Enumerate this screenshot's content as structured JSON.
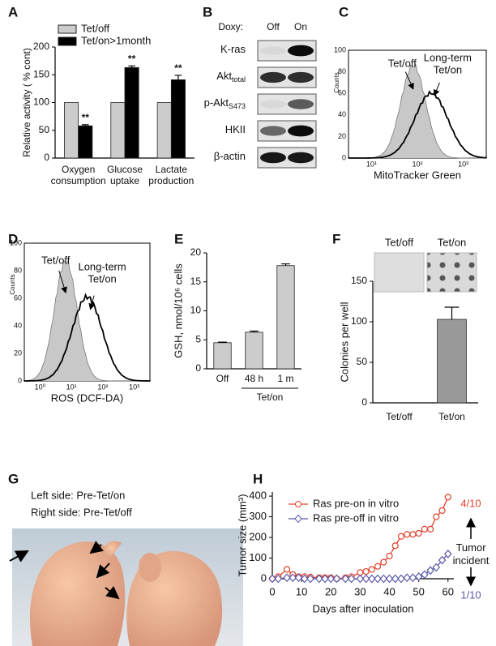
{
  "chart_data": [
    {
      "type": "bar",
      "panel": "A",
      "ylabel": "Relative activity ( % cont)",
      "categories": [
        "Oxygen consumption",
        "Glucose uptake",
        "Lactate production"
      ],
      "series": [
        {
          "name": "Tet/off",
          "color": "#cccccc",
          "values": [
            100,
            100,
            100
          ]
        },
        {
          "name": "Tet/on>1month",
          "color": "#000000",
          "values": [
            58,
            163,
            141
          ],
          "errors": [
            2,
            3,
            8
          ],
          "significance": [
            "**",
            "**",
            "**"
          ]
        }
      ],
      "ylim": [
        0,
        200
      ],
      "yticks": [
        0,
        50,
        100,
        150,
        200
      ]
    },
    {
      "type": "bar",
      "panel": "E",
      "ylabel": "GSH, nmol/10⁶ cells",
      "categories": [
        "Off",
        "48 h",
        "1 m"
      ],
      "values": [
        4.5,
        6.3,
        17.8
      ],
      "errors": [
        0.1,
        0.2,
        0.3
      ],
      "color": "#cccccc",
      "group_label": "Tet/on",
      "ylim": [
        0,
        20
      ],
      "yticks": [
        0,
        5,
        10,
        15,
        20
      ]
    },
    {
      "type": "bar",
      "panel": "F",
      "ylabel": "Colonies per well",
      "categories": [
        "Tet/off",
        "Tet/on"
      ],
      "values": [
        0,
        103
      ],
      "errors": [
        null,
        15
      ],
      "color": "#999999",
      "image_labels": [
        "Tet/off",
        "Tet/on"
      ],
      "ylim": [
        0,
        150
      ],
      "yticks": [
        0,
        50,
        100,
        150
      ]
    },
    {
      "type": "line",
      "panel": "H",
      "xlabel": "Days after inoculation",
      "ylabel": "Tumor size (mm³)",
      "x": [
        0,
        2,
        5,
        7,
        9,
        11,
        13,
        16,
        18,
        20,
        22,
        25,
        27,
        30,
        32,
        34,
        36,
        38,
        40,
        42,
        44,
        46,
        48,
        50,
        52,
        54,
        56,
        58,
        60
      ],
      "series": [
        {
          "name": "Ras pre-on in vitro",
          "color": "#e0402a",
          "marker": "circle",
          "values": [
            0,
            10,
            45,
            20,
            10,
            10,
            8,
            5,
            5,
            5,
            0,
            5,
            10,
            30,
            35,
            45,
            60,
            80,
            110,
            160,
            205,
            215,
            215,
            220,
            240,
            240,
            300,
            330,
            395
          ]
        },
        {
          "name": "Ras pre-off in vitro",
          "color": "#5a5aa8",
          "marker": "diamond",
          "values": [
            0,
            0,
            5,
            5,
            5,
            0,
            0,
            0,
            0,
            0,
            0,
            0,
            0,
            0,
            0,
            0,
            0,
            0,
            0,
            0,
            0,
            5,
            5,
            10,
            20,
            40,
            55,
            90,
            120
          ]
        }
      ],
      "annotations": {
        "top": "4/10",
        "middle": "Tumor incident",
        "bottom": "1/10"
      },
      "xlim": [
        0,
        62
      ],
      "xticks": [
        0,
        10,
        20,
        30,
        40,
        50,
        60
      ],
      "ylim": [
        0,
        420
      ],
      "yticks": [
        0,
        100,
        200,
        300,
        400
      ]
    }
  ],
  "blot": {
    "panel": "B",
    "header": "Doxy:",
    "lanes": [
      "Off",
      "On"
    ],
    "rows": [
      {
        "text": "K-ras"
      },
      {
        "text": "Akt",
        "sub": "total"
      },
      {
        "text": "p-Akt",
        "sub": "S473"
      },
      {
        "text": "HKII"
      },
      {
        "text": "β-actin"
      }
    ]
  },
  "flow": [
    {
      "panel": "C",
      "ylabel": "Counts",
      "xlabel": "MitoTracker Green",
      "labels": [
        "Tet/off",
        "Long-term Tet/on"
      ],
      "yticks": [
        "0",
        "20",
        "40",
        "60",
        "80",
        "100"
      ],
      "xticks": [
        "10¹",
        "10²",
        "10³"
      ]
    },
    {
      "panel": "D",
      "ylabel": "Counts",
      "xlabel": "ROS (DCF-DA)",
      "labels": [
        "Tet/off",
        "Long-term Tet/on"
      ],
      "yticks": [
        "0",
        "20",
        "40",
        "60",
        "80",
        "100"
      ],
      "xticks": [
        "10⁰",
        "10¹",
        "10²",
        "10³"
      ]
    }
  ],
  "photo": {
    "panel": "G",
    "lines": [
      "Left side:  Pre-Tet/on",
      "Right side:  Pre-Tet/off"
    ]
  }
}
